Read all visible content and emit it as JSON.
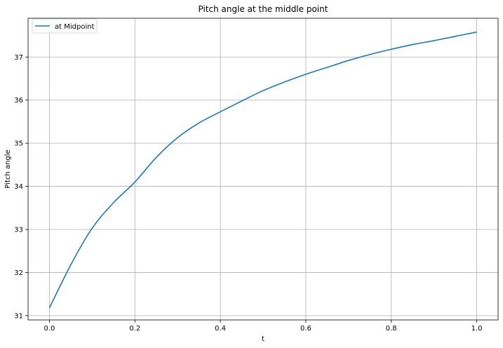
{
  "chart_data": {
    "type": "line",
    "title": "Pitch angle at the middle point",
    "xlabel": "t",
    "ylabel": "Pitch angle",
    "xlim": [
      -0.05,
      1.05
    ],
    "ylim": [
      30.9,
      37.9
    ],
    "xticks": [
      0.0,
      0.2,
      0.4,
      0.6,
      0.8,
      1.0
    ],
    "xtick_labels": [
      "0.0",
      "0.2",
      "0.4",
      "0.6",
      "0.8",
      "1.0"
    ],
    "yticks": [
      31,
      32,
      33,
      34,
      35,
      36,
      37
    ],
    "ytick_labels": [
      "31",
      "32",
      "33",
      "34",
      "35",
      "36",
      "37"
    ],
    "grid": true,
    "legend_position": "upper-left",
    "series": [
      {
        "name": "at Midpoint",
        "color": "#1f77b4",
        "x": [
          0.0,
          0.05,
          0.1,
          0.15,
          0.2,
          0.25,
          0.3,
          0.35,
          0.4,
          0.45,
          0.5,
          0.55,
          0.6,
          0.65,
          0.7,
          0.75,
          0.8,
          0.85,
          0.9,
          0.95,
          1.0
        ],
        "y": [
          31.18,
          32.18,
          33.03,
          33.62,
          34.1,
          34.67,
          35.13,
          35.47,
          35.73,
          35.98,
          36.22,
          36.42,
          36.6,
          36.76,
          36.92,
          37.06,
          37.18,
          37.29,
          37.38,
          37.48,
          37.58
        ]
      }
    ]
  }
}
